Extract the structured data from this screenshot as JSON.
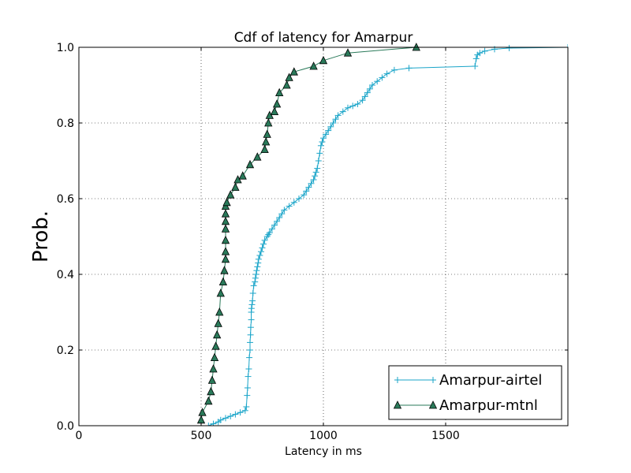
{
  "chart_data": {
    "type": "line",
    "title": "Cdf of latency for Amarpur",
    "xlabel": "Latency in ms",
    "ylabel": "Prob.",
    "xlim": [
      0,
      2000
    ],
    "ylim": [
      0,
      1
    ],
    "xticks": [
      0,
      500,
      1000,
      1500
    ],
    "yticks": [
      0.0,
      0.2,
      0.4,
      0.6,
      0.8,
      1.0
    ],
    "xtick_labels": [
      "0",
      "500",
      "1000",
      "1500"
    ],
    "ytick_labels": [
      "0.0",
      "0.2",
      "0.4",
      "0.6",
      "0.8",
      "1.0"
    ],
    "grid": true,
    "legend_position": "lower right",
    "series": [
      {
        "name": "Amarpur-airtel",
        "color": "#1ba5c9",
        "marker": "plus",
        "x": [
          530,
          550,
          570,
          580,
          600,
          620,
          640,
          660,
          680,
          685,
          688,
          690,
          692,
          695,
          697,
          700,
          700,
          702,
          703,
          705,
          705,
          706,
          708,
          710,
          712,
          715,
          720,
          722,
          725,
          727,
          730,
          733,
          735,
          740,
          745,
          750,
          755,
          760,
          770,
          775,
          780,
          790,
          800,
          810,
          820,
          830,
          840,
          860,
          880,
          900,
          920,
          930,
          940,
          950,
          960,
          965,
          970,
          975,
          980,
          985,
          990,
          995,
          1000,
          1010,
          1020,
          1030,
          1040,
          1050,
          1060,
          1080,
          1100,
          1120,
          1140,
          1160,
          1170,
          1180,
          1190,
          1200,
          1220,
          1240,
          1260,
          1290,
          1350,
          1620,
          1625,
          1630,
          1640,
          1660,
          1700,
          1760,
          2000
        ],
        "y": [
          0.0,
          0.005,
          0.01,
          0.015,
          0.02,
          0.025,
          0.03,
          0.035,
          0.04,
          0.05,
          0.08,
          0.1,
          0.13,
          0.15,
          0.18,
          0.2,
          0.22,
          0.24,
          0.26,
          0.28,
          0.3,
          0.31,
          0.32,
          0.33,
          0.35,
          0.37,
          0.38,
          0.39,
          0.4,
          0.41,
          0.42,
          0.43,
          0.44,
          0.45,
          0.46,
          0.47,
          0.48,
          0.49,
          0.5,
          0.505,
          0.51,
          0.52,
          0.53,
          0.54,
          0.55,
          0.56,
          0.57,
          0.58,
          0.59,
          0.6,
          0.61,
          0.62,
          0.63,
          0.64,
          0.65,
          0.66,
          0.67,
          0.68,
          0.7,
          0.72,
          0.74,
          0.75,
          0.76,
          0.77,
          0.78,
          0.79,
          0.8,
          0.81,
          0.82,
          0.83,
          0.84,
          0.845,
          0.85,
          0.86,
          0.87,
          0.88,
          0.89,
          0.9,
          0.91,
          0.92,
          0.93,
          0.94,
          0.945,
          0.95,
          0.97,
          0.98,
          0.985,
          0.99,
          0.995,
          0.998,
          1.0
        ]
      },
      {
        "name": "Amarpur-mtnl",
        "color": "#2a7a5a",
        "marker": "triangle",
        "x": [
          500,
          505,
          530,
          540,
          545,
          550,
          555,
          560,
          565,
          570,
          575,
          580,
          590,
          595,
          600,
          600,
          600,
          600,
          600,
          600,
          600,
          605,
          620,
          640,
          650,
          670,
          700,
          730,
          760,
          765,
          770,
          775,
          780,
          800,
          810,
          820,
          850,
          860,
          880,
          960,
          1000,
          1100,
          1380
        ],
        "y": [
          0.015,
          0.035,
          0.065,
          0.09,
          0.12,
          0.15,
          0.18,
          0.21,
          0.24,
          0.27,
          0.3,
          0.35,
          0.38,
          0.41,
          0.44,
          0.46,
          0.49,
          0.52,
          0.54,
          0.56,
          0.58,
          0.59,
          0.61,
          0.63,
          0.65,
          0.66,
          0.69,
          0.71,
          0.73,
          0.75,
          0.77,
          0.8,
          0.82,
          0.83,
          0.85,
          0.88,
          0.9,
          0.92,
          0.935,
          0.95,
          0.965,
          0.985,
          1.0
        ]
      }
    ]
  }
}
